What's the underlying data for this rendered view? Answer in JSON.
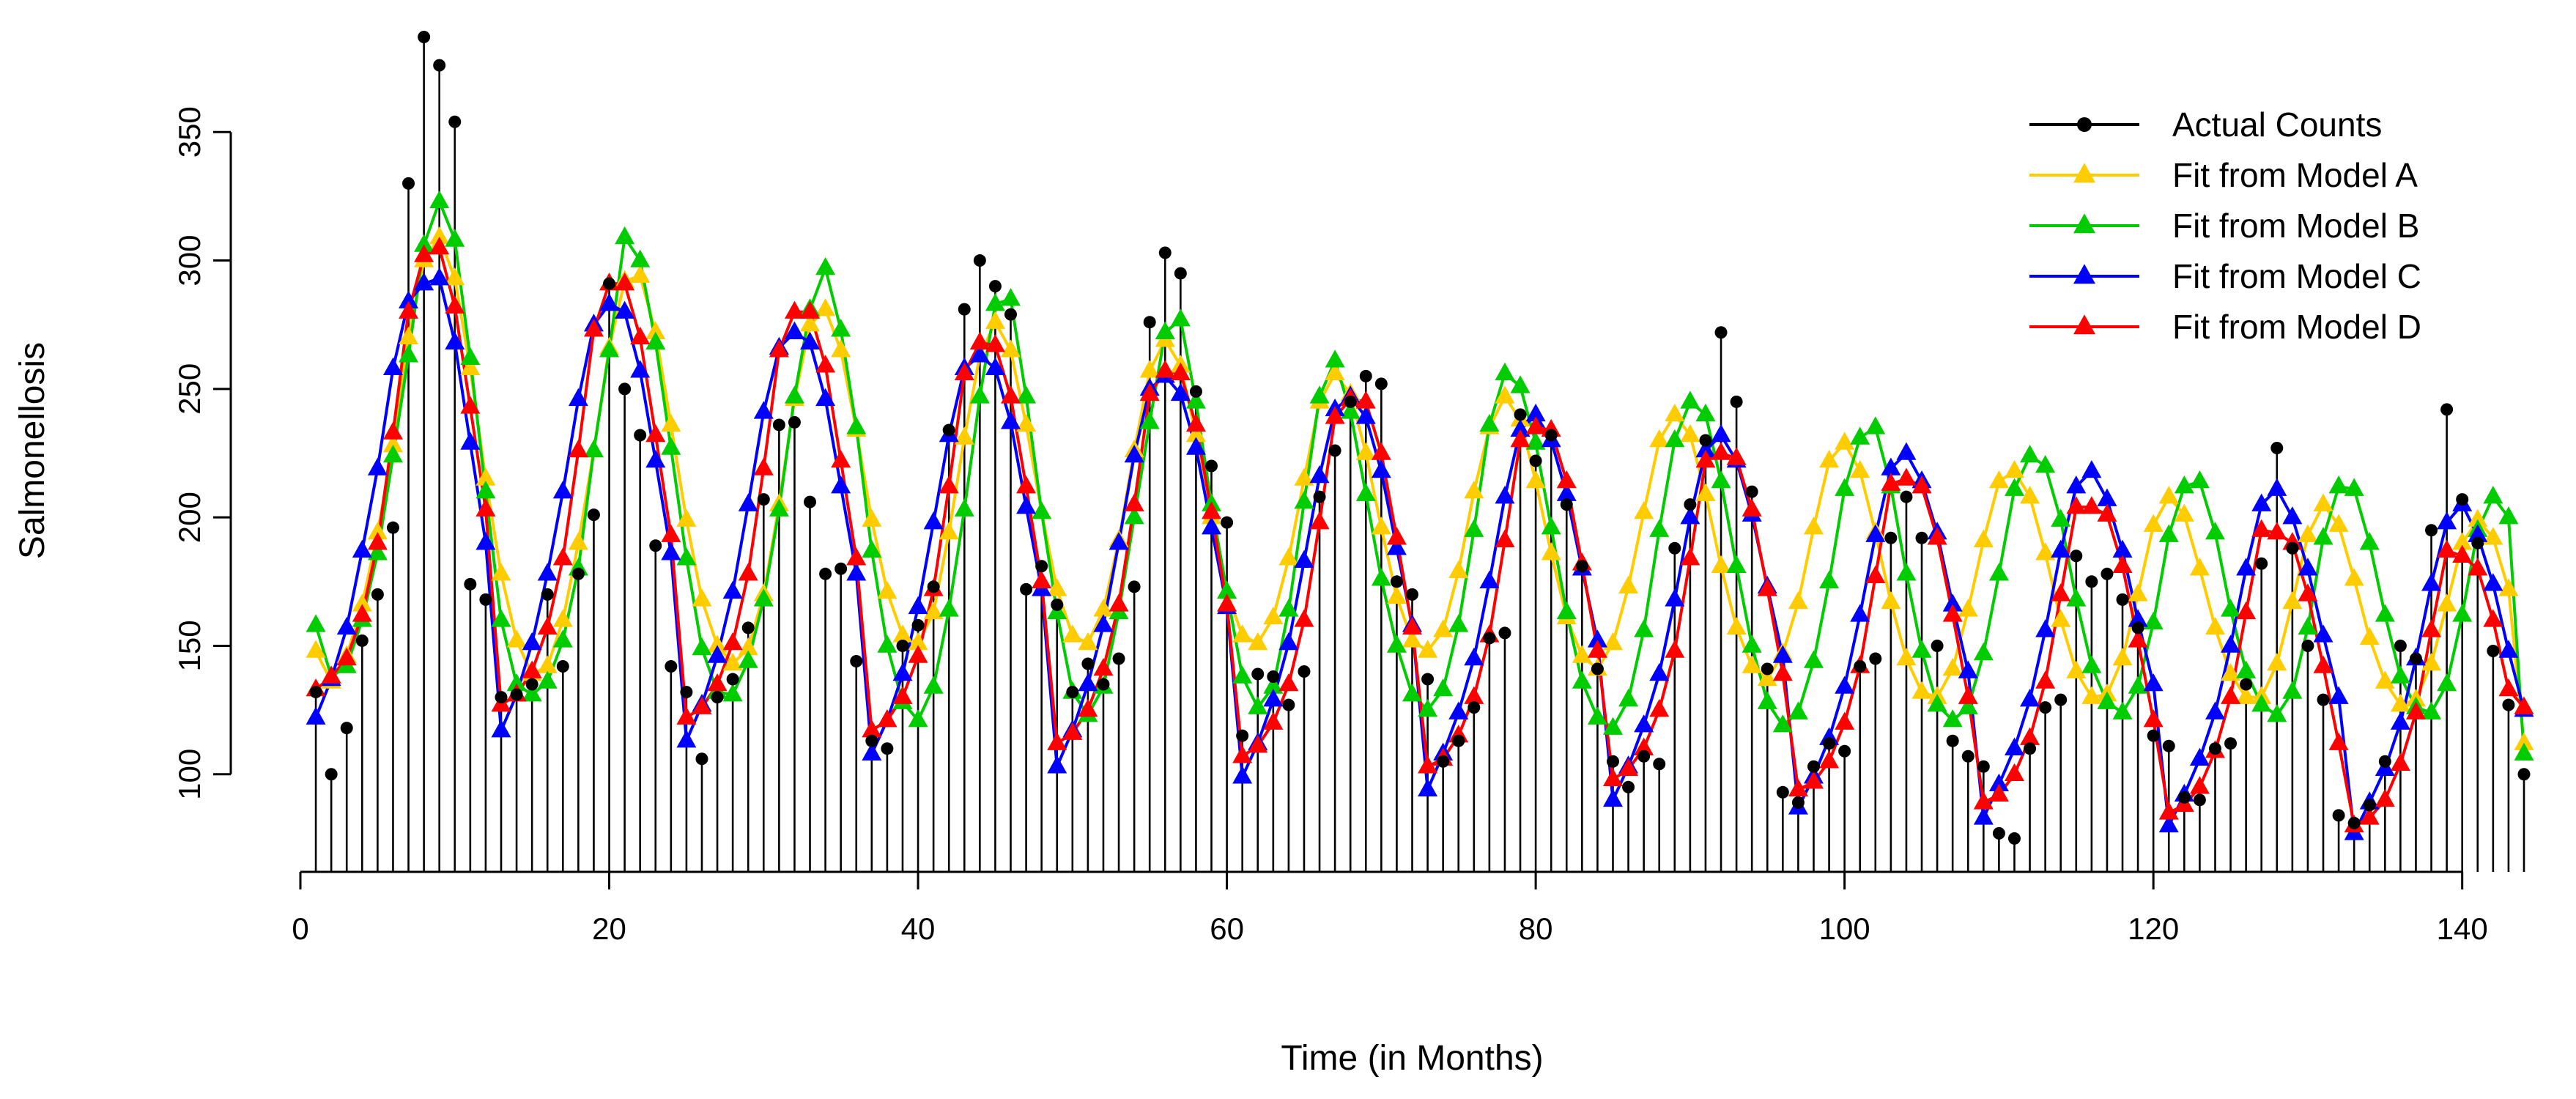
{
  "chart_data": {
    "type": "line",
    "title": "",
    "xlabel": "Time (in Months)",
    "ylabel": "Salmonellosis",
    "xlim": [
      0,
      144
    ],
    "ylim": [
      62,
      390
    ],
    "xticks": [
      0,
      20,
      40,
      60,
      80,
      100,
      120,
      140
    ],
    "yticks": [
      100,
      150,
      200,
      250,
      300,
      350
    ],
    "legend_position": "top-right",
    "x": [
      1,
      2,
      3,
      4,
      5,
      6,
      7,
      8,
      9,
      10,
      11,
      12,
      13,
      14,
      15,
      16,
      17,
      18,
      19,
      20,
      21,
      22,
      23,
      24,
      25,
      26,
      27,
      28,
      29,
      30,
      31,
      32,
      33,
      34,
      35,
      36,
      37,
      38,
      39,
      40,
      41,
      42,
      43,
      44,
      45,
      46,
      47,
      48,
      49,
      50,
      51,
      52,
      53,
      54,
      55,
      56,
      57,
      58,
      59,
      60,
      61,
      62,
      63,
      64,
      65,
      66,
      67,
      68,
      69,
      70,
      71,
      72,
      73,
      74,
      75,
      76,
      77,
      78,
      79,
      80,
      81,
      82,
      83,
      84,
      85,
      86,
      87,
      88,
      89,
      90,
      91,
      92,
      93,
      94,
      95,
      96,
      97,
      98,
      99,
      100,
      101,
      102,
      103,
      104,
      105,
      106,
      107,
      108,
      109,
      110,
      111,
      112,
      113,
      114,
      115,
      116,
      117,
      118,
      119,
      120,
      121,
      122,
      123,
      124,
      125,
      126,
      127,
      128,
      129,
      130,
      131,
      132,
      133,
      134,
      135,
      136,
      137,
      138,
      139,
      140,
      141,
      142,
      143,
      144
    ],
    "series": [
      {
        "name": "Actual Counts",
        "color": "#000000",
        "marker": "circle",
        "style": "spikes",
        "values": [
          132,
          100,
          118,
          152,
          170,
          196,
          330,
          387,
          376,
          354,
          174,
          168,
          130,
          131,
          135,
          170,
          142,
          178,
          201,
          291,
          250,
          232,
          189,
          142,
          132,
          106,
          130,
          137,
          157,
          207,
          236,
          237,
          206,
          178,
          180,
          144,
          113,
          110,
          150,
          158,
          173,
          234,
          281,
          300,
          290,
          279,
          172,
          181,
          166,
          132,
          143,
          135,
          145,
          173,
          276,
          303,
          295,
          249,
          220,
          198,
          115,
          139,
          138,
          127,
          140,
          208,
          226,
          245,
          255,
          252,
          175,
          170,
          137,
          105,
          113,
          126,
          153,
          155,
          240,
          222,
          232,
          205,
          181,
          141,
          105,
          95,
          107,
          104,
          188,
          205,
          230,
          272,
          245,
          210,
          141,
          93,
          89,
          103,
          112,
          109,
          142,
          145,
          192,
          208,
          192,
          150,
          113,
          107,
          103,
          77,
          75,
          110,
          126,
          129,
          185,
          175,
          178,
          168,
          157,
          115,
          111,
          91,
          90,
          110,
          112,
          135,
          182,
          227,
          188,
          150,
          129,
          84,
          81,
          88,
          105,
          150,
          145,
          195,
          242,
          207,
          190,
          148,
          127,
          100
        ]
      },
      {
        "name": "Fit from Model A",
        "color": "#FFCC00",
        "marker": "triangle",
        "style": "line",
        "values": [
          148,
          136,
          146,
          166,
          194,
          228,
          270,
          300,
          309,
          293,
          258,
          215,
          178,
          152,
          139,
          142,
          160,
          190,
          226,
          266,
          292,
          294,
          272,
          236,
          199,
          168,
          150,
          143,
          149,
          170,
          205,
          246,
          275,
          281,
          265,
          234,
          199,
          171,
          154,
          151,
          163,
          194,
          231,
          263,
          276,
          265,
          236,
          202,
          172,
          154,
          151,
          164,
          191,
          226,
          257,
          269,
          259,
          232,
          200,
          171,
          154,
          151,
          161,
          184,
          215,
          245,
          256,
          248,
          225,
          196,
          169,
          152,
          148,
          156,
          179,
          210,
          235,
          247,
          238,
          214,
          186,
          161,
          146,
          141,
          151,
          173,
          202,
          230,
          240,
          232,
          209,
          181,
          157,
          142,
          137,
          147,
          167,
          196,
          222,
          229,
          218,
          194,
          167,
          145,
          132,
          130,
          141,
          164,
          191,
          214,
          218,
          208,
          186,
          160,
          140,
          130,
          131,
          145,
          170,
          197,
          208,
          201,
          180,
          157,
          139,
          130,
          130,
          143,
          167,
          193,
          205,
          197,
          176,
          153,
          136,
          127,
          129,
          143,
          166,
          190,
          199,
          192,
          172,
          112
        ]
      },
      {
        "name": "Fit from Model B",
        "color": "#00CC00",
        "marker": "triangle",
        "style": "line",
        "values": [
          158,
          138,
          142,
          160,
          186,
          224,
          263,
          306,
          323,
          308,
          262,
          210,
          160,
          135,
          131,
          136,
          152,
          180,
          226,
          265,
          309,
          300,
          268,
          227,
          184,
          149,
          132,
          131,
          144,
          168,
          203,
          247,
          281,
          297,
          273,
          235,
          187,
          150,
          128,
          121,
          134,
          164,
          203,
          247,
          283,
          285,
          247,
          202,
          163,
          132,
          123,
          134,
          163,
          200,
          237,
          272,
          277,
          245,
          205,
          171,
          138,
          126,
          134,
          164,
          206,
          247,
          261,
          241,
          209,
          176,
          150,
          131,
          125,
          133,
          158,
          195,
          236,
          256,
          251,
          229,
          196,
          163,
          136,
          122,
          118,
          129,
          156,
          195,
          230,
          245,
          240,
          214,
          181,
          150,
          128,
          119,
          124,
          144,
          175,
          211,
          231,
          235,
          212,
          178,
          148,
          127,
          121,
          126,
          147,
          178,
          211,
          224,
          220,
          199,
          168,
          142,
          128,
          124,
          134,
          159,
          193,
          212,
          214,
          194,
          164,
          140,
          127,
          123,
          132,
          157,
          192,
          212,
          211,
          190,
          162,
          138,
          126,
          124,
          135,
          162,
          195,
          208,
          200,
          108
        ]
      },
      {
        "name": "Fit from Model C",
        "color": "#0000FF",
        "marker": "triangle",
        "style": "line",
        "values": [
          122,
          137,
          157,
          187,
          219,
          258,
          284,
          291,
          293,
          268,
          229,
          190,
          117,
          131,
          151,
          178,
          210,
          246,
          275,
          283,
          280,
          257,
          222,
          186,
          113,
          127,
          146,
          171,
          205,
          241,
          266,
          272,
          268,
          246,
          212,
          178,
          108,
          121,
          139,
          165,
          198,
          232,
          258,
          263,
          258,
          237,
          204,
          172,
          103,
          117,
          135,
          158,
          190,
          224,
          250,
          255,
          248,
          227,
          196,
          165,
          99,
          112,
          129,
          151,
          183,
          216,
          242,
          247,
          239,
          218,
          188,
          158,
          94,
          108,
          124,
          145,
          175,
          208,
          234,
          240,
          230,
          209,
          180,
          152,
          90,
          103,
          119,
          139,
          168,
          200,
          226,
          232,
          222,
          201,
          173,
          146,
          87,
          99,
          114,
          134,
          162,
          193,
          219,
          225,
          214,
          194,
          166,
          140,
          83,
          96,
          110,
          129,
          156,
          187,
          212,
          218,
          207,
          187,
          160,
          135,
          80,
          92,
          106,
          124,
          150,
          180,
          205,
          211,
          200,
          180,
          154,
          130,
          77,
          89,
          102,
          120,
          145,
          174,
          198,
          205,
          193,
          174,
          148,
          125
        ]
      },
      {
        "name": "Fit from Model D",
        "color": "#FF0000",
        "marker": "triangle",
        "style": "line",
        "values": [
          133,
          138,
          145,
          162,
          190,
          233,
          280,
          302,
          305,
          282,
          243,
          203,
          127,
          131,
          140,
          157,
          184,
          226,
          273,
          291,
          291,
          270,
          232,
          193,
          122,
          126,
          135,
          151,
          178,
          219,
          265,
          280,
          280,
          259,
          222,
          184,
          117,
          121,
          130,
          146,
          172,
          212,
          256,
          268,
          267,
          247,
          212,
          175,
          112,
          116,
          125,
          141,
          166,
          205,
          248,
          257,
          256,
          236,
          202,
          166,
          107,
          111,
          120,
          135,
          160,
          198,
          239,
          246,
          245,
          225,
          192,
          157,
          103,
          106,
          115,
          130,
          154,
          191,
          230,
          235,
          234,
          214,
          182,
          148,
          98,
          102,
          110,
          125,
          148,
          184,
          222,
          225,
          223,
          203,
          172,
          139,
          94,
          97,
          105,
          120,
          142,
          177,
          213,
          215,
          212,
          192,
          162,
          130,
          89,
          92,
          100,
          114,
          136,
          170,
          204,
          204,
          201,
          181,
          152,
          121,
          85,
          88,
          95,
          109,
          130,
          163,
          195,
          194,
          190,
          170,
          142,
          112,
          80,
          83,
          90,
          104,
          124,
          156,
          187,
          185,
          180,
          160,
          133,
          126
        ]
      }
    ]
  }
}
